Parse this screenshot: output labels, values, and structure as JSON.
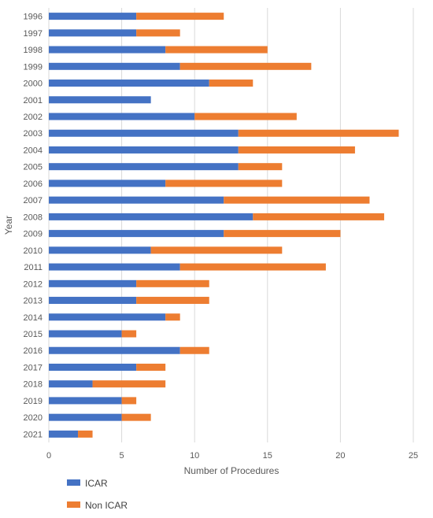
{
  "chart_data": {
    "type": "bar",
    "orientation": "horizontal",
    "stacked": true,
    "title": "",
    "xlabel": "Number of Procedures",
    "ylabel": "Year",
    "xlim": [
      0,
      25
    ],
    "x_ticks": [
      "0",
      "5",
      "10",
      "15",
      "20",
      "25"
    ],
    "grid": "vertical",
    "legend_position": "bottom-left",
    "categories": [
      "1996",
      "1997",
      "1998",
      "1999",
      "2000",
      "2001",
      "2002",
      "2003",
      "2004",
      "2005",
      "2006",
      "2007",
      "2008",
      "2009",
      "2010",
      "2011",
      "2012",
      "2013",
      "2014",
      "2015",
      "2016",
      "2017",
      "2018",
      "2019",
      "2020",
      "2021"
    ],
    "series": [
      {
        "name": "ICAR",
        "color": "#4472C4",
        "values": [
          6,
          6,
          8,
          9,
          11,
          7,
          10,
          13,
          13,
          13,
          8,
          12,
          14,
          12,
          7,
          9,
          6,
          6,
          8,
          5,
          9,
          6,
          3,
          5,
          5,
          2
        ]
      },
      {
        "name": "Non ICAR",
        "color": "#ED7D31",
        "values": [
          6,
          3,
          7,
          9,
          3,
          0,
          7,
          11,
          8,
          3,
          8,
          10,
          9,
          8,
          9,
          10,
          5,
          5,
          1,
          1,
          2,
          2,
          5,
          1,
          2,
          1
        ]
      }
    ]
  }
}
